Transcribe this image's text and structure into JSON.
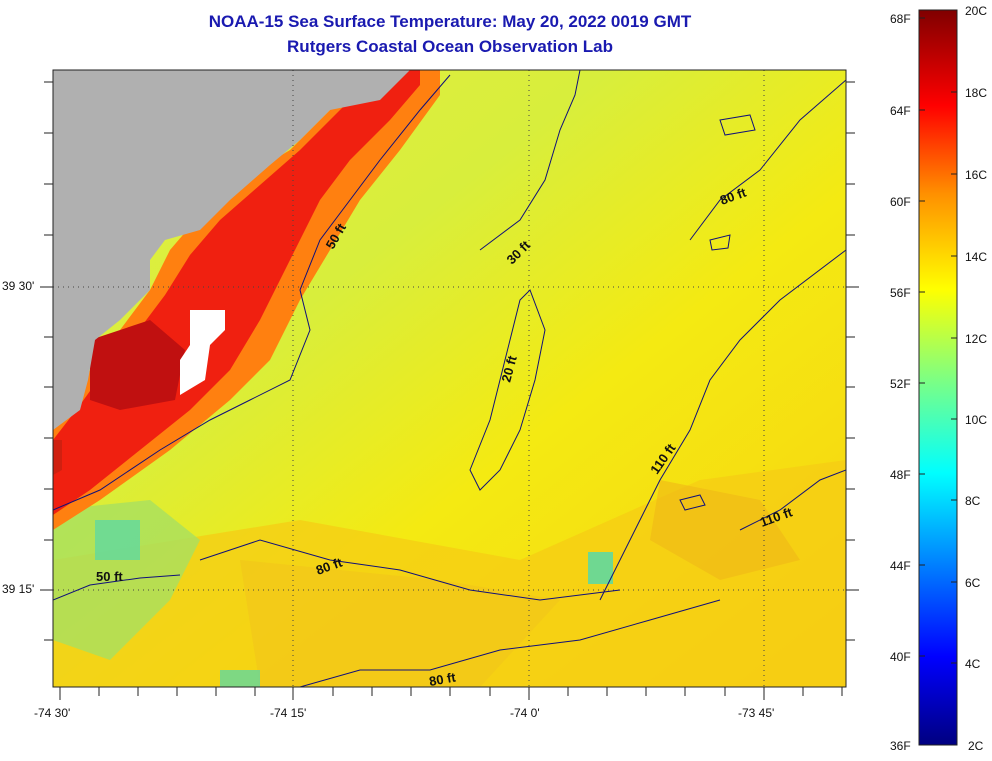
{
  "header": {
    "title": "NOAA-15 Sea Surface Temperature:  May 20, 2022 0019 GMT",
    "subtitle": "Rutgers Coastal Ocean Observation Lab"
  },
  "map": {
    "lat_labels": [
      "39 30'",
      "39 15'"
    ],
    "lon_labels": [
      "-74 30'",
      "-74 15'",
      "-74 0'",
      "-73 45'"
    ],
    "land_color": "#b0b0b0",
    "contour_color": "#10107a",
    "contour_labels": [
      "50 ft",
      "30 ft",
      "80 ft",
      "20 ft",
      "110 ft",
      "110 ft",
      "50 ft",
      "80 ft",
      "80 ft"
    ]
  },
  "colorbar": {
    "fahrenheit_labels": [
      "68F",
      "64F",
      "60F",
      "56F",
      "52F",
      "48F",
      "44F",
      "40F",
      "36F"
    ],
    "celsius_labels": [
      "20C",
      "18C",
      "16C",
      "14C",
      "12C",
      "10C",
      "8C",
      "6C",
      "4C",
      "2C"
    ],
    "colors": [
      "#000080",
      "#0000ff",
      "#0080ff",
      "#00ffff",
      "#80ff80",
      "#ffff00",
      "#ff8000",
      "#ff0000",
      "#800000"
    ]
  }
}
